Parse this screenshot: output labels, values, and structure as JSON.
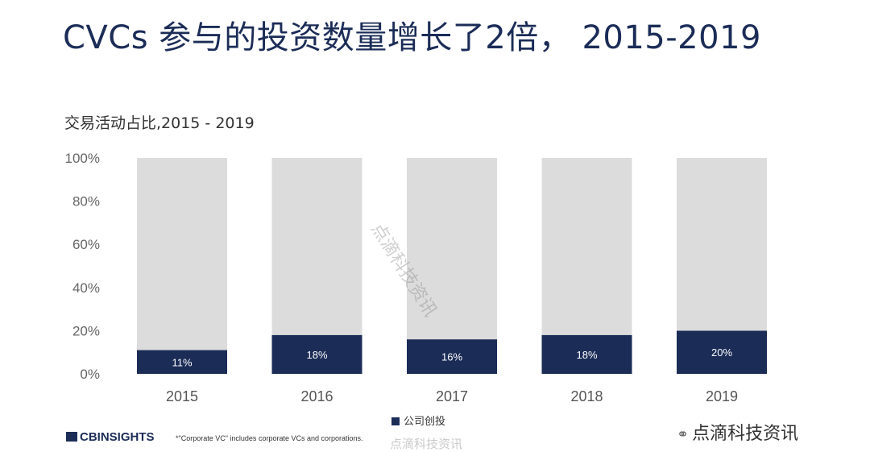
{
  "title": "CVCs 参与的投资数量增长了2倍， 2015-2019",
  "chart_data": {
    "type": "bar",
    "stacked": true,
    "title": "交易活动占比,2015 - 2019",
    "categories": [
      "2015",
      "2016",
      "2017",
      "2018",
      "2019"
    ],
    "series": [
      {
        "name": "公司创投",
        "values": [
          11,
          18,
          16,
          18,
          20
        ],
        "color": "#1b2c57"
      },
      {
        "name": "",
        "values": [
          89,
          82,
          84,
          82,
          80
        ],
        "color": "#dcdcdc"
      }
    ],
    "data_labels": [
      "11%",
      "18%",
      "16%",
      "18%",
      "20%"
    ],
    "y_ticks": [
      "0%",
      "20%",
      "40%",
      "60%",
      "80%",
      "100%"
    ],
    "ylim": [
      0,
      100
    ],
    "legend_position": "bottom",
    "grid": false
  },
  "legend": {
    "label": "公司创投",
    "color": "#1b2c57"
  },
  "footer": {
    "logo": "CBINSIGHTS",
    "note": "*\"Corporate VC\" includes corporate VCs and corporations."
  },
  "watermarks": {
    "diagonal": "点滴科技资讯",
    "corner": "点滴科技资讯",
    "bottom": "点滴科技资讯"
  }
}
